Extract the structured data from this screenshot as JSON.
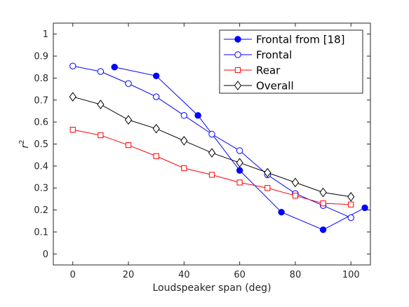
{
  "chart_data": {
    "type": "line",
    "title": "",
    "xlabel": "Loudspeaker span (deg)",
    "ylabel": "r",
    "ylabel_superscript": "2",
    "xlim": [
      -7,
      107
    ],
    "ylim": [
      -0.05,
      1.05
    ],
    "xticks": [
      0,
      20,
      40,
      60,
      80,
      100
    ],
    "yticks": [
      0,
      0.1,
      0.2,
      0.3,
      0.4,
      0.5,
      0.6,
      0.7,
      0.8,
      0.9,
      1
    ],
    "grid": false,
    "legend_position": "top-right",
    "series": [
      {
        "name": "Frontal from [18]",
        "color": "#0000ff",
        "marker": "circle-filled",
        "points": [
          [
            15,
            0.85
          ],
          [
            30,
            0.81
          ],
          [
            45,
            0.63
          ],
          [
            60,
            0.38
          ],
          [
            75,
            0.19
          ],
          [
            90,
            0.11
          ],
          [
            105,
            0.21
          ]
        ]
      },
      {
        "name": "Frontal",
        "color": "#0000ff",
        "marker": "circle-open",
        "points": [
          [
            0,
            0.855
          ],
          [
            10,
            0.83
          ],
          [
            20,
            0.775
          ],
          [
            30,
            0.715
          ],
          [
            40,
            0.63
          ],
          [
            50,
            0.545
          ],
          [
            60,
            0.47
          ],
          [
            70,
            0.36
          ],
          [
            80,
            0.275
          ],
          [
            90,
            0.22
          ],
          [
            100,
            0.165
          ]
        ]
      },
      {
        "name": "Rear",
        "color": "#ff0000",
        "marker": "square-open",
        "points": [
          [
            0,
            0.565
          ],
          [
            10,
            0.54
          ],
          [
            20,
            0.495
          ],
          [
            30,
            0.445
          ],
          [
            40,
            0.39
          ],
          [
            50,
            0.36
          ],
          [
            60,
            0.325
          ],
          [
            70,
            0.3
          ],
          [
            80,
            0.265
          ],
          [
            90,
            0.23
          ],
          [
            100,
            0.225
          ]
        ]
      },
      {
        "name": "Overall",
        "color": "#000000",
        "marker": "diamond-open",
        "points": [
          [
            0,
            0.715
          ],
          [
            10,
            0.68
          ],
          [
            20,
            0.61
          ],
          [
            30,
            0.57
          ],
          [
            40,
            0.515
          ],
          [
            50,
            0.46
          ],
          [
            60,
            0.415
          ],
          [
            70,
            0.37
          ],
          [
            80,
            0.325
          ],
          [
            90,
            0.28
          ],
          [
            100,
            0.26
          ]
        ]
      }
    ]
  }
}
